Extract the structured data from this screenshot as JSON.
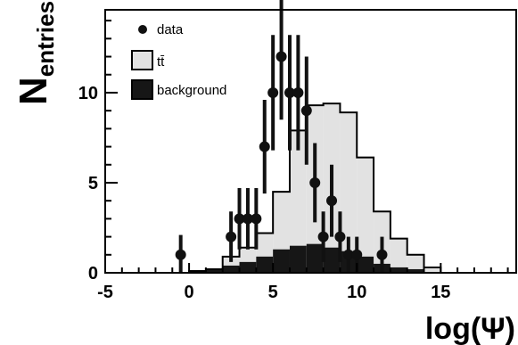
{
  "chart_data": {
    "type": "histogram",
    "xlabel": "log(Ψ)",
    "ylabel_main": "N",
    "ylabel_sub": "entries",
    "xlim": [
      -5,
      19.5
    ],
    "ylim": [
      0,
      14.6
    ],
    "grid": false,
    "legend_position": "top-left",
    "x_ticks": [
      -5,
      0,
      5,
      10,
      15
    ],
    "y_ticks": [
      0,
      5,
      10
    ],
    "bin_width": 1,
    "bin_edges": [
      0,
      1,
      2,
      3,
      4,
      5,
      6,
      7,
      8,
      9,
      10,
      11,
      12,
      13,
      14,
      15
    ],
    "bins_ttbar_total": [
      0.1,
      0.2,
      0.9,
      1.4,
      2.2,
      4.5,
      7.9,
      9.3,
      9.4,
      8.9,
      6.4,
      3.4,
      1.9,
      1.0,
      0.3
    ],
    "bins_background": [
      0.1,
      0.2,
      0.4,
      0.6,
      0.9,
      1.3,
      1.5,
      1.6,
      1.4,
      1.2,
      0.9,
      0.5,
      0.3,
      0.2,
      0.05
    ],
    "data_points": [
      {
        "x": -0.5,
        "y": 1,
        "err": 1.1
      },
      {
        "x": 2.5,
        "y": 2,
        "err": 1.4
      },
      {
        "x": 3.0,
        "y": 3,
        "err": 1.7
      },
      {
        "x": 3.5,
        "y": 3,
        "err": 1.7
      },
      {
        "x": 4.0,
        "y": 3,
        "err": 1.7
      },
      {
        "x": 4.5,
        "y": 7,
        "err": 2.6
      },
      {
        "x": 5.0,
        "y": 10,
        "err": 3.2
      },
      {
        "x": 5.5,
        "y": 12,
        "err": 3.5
      },
      {
        "x": 6.0,
        "y": 10,
        "err": 3.2
      },
      {
        "x": 6.5,
        "y": 10,
        "err": 3.2
      },
      {
        "x": 7.0,
        "y": 9,
        "err": 3.0
      },
      {
        "x": 7.5,
        "y": 5,
        "err": 2.2
      },
      {
        "x": 8.0,
        "y": 2,
        "err": 1.4
      },
      {
        "x": 8.5,
        "y": 4,
        "err": 2.0
      },
      {
        "x": 9.0,
        "y": 2,
        "err": 1.4
      },
      {
        "x": 9.5,
        "y": 1,
        "err": 1.0
      },
      {
        "x": 10.0,
        "y": 1,
        "err": 1.0
      },
      {
        "x": 11.5,
        "y": 1,
        "err": 1.0
      }
    ],
    "legend": [
      {
        "name": "data",
        "kind": "marker",
        "color": "#111111"
      },
      {
        "name": "tt̄",
        "kind": "box",
        "color": "#e2e2e2"
      },
      {
        "name": "background",
        "kind": "box",
        "color": "#161616"
      }
    ],
    "colors": {
      "signal": "#e2e2e2",
      "background": "#161616",
      "data": "#111111",
      "outline": "#000000"
    }
  }
}
